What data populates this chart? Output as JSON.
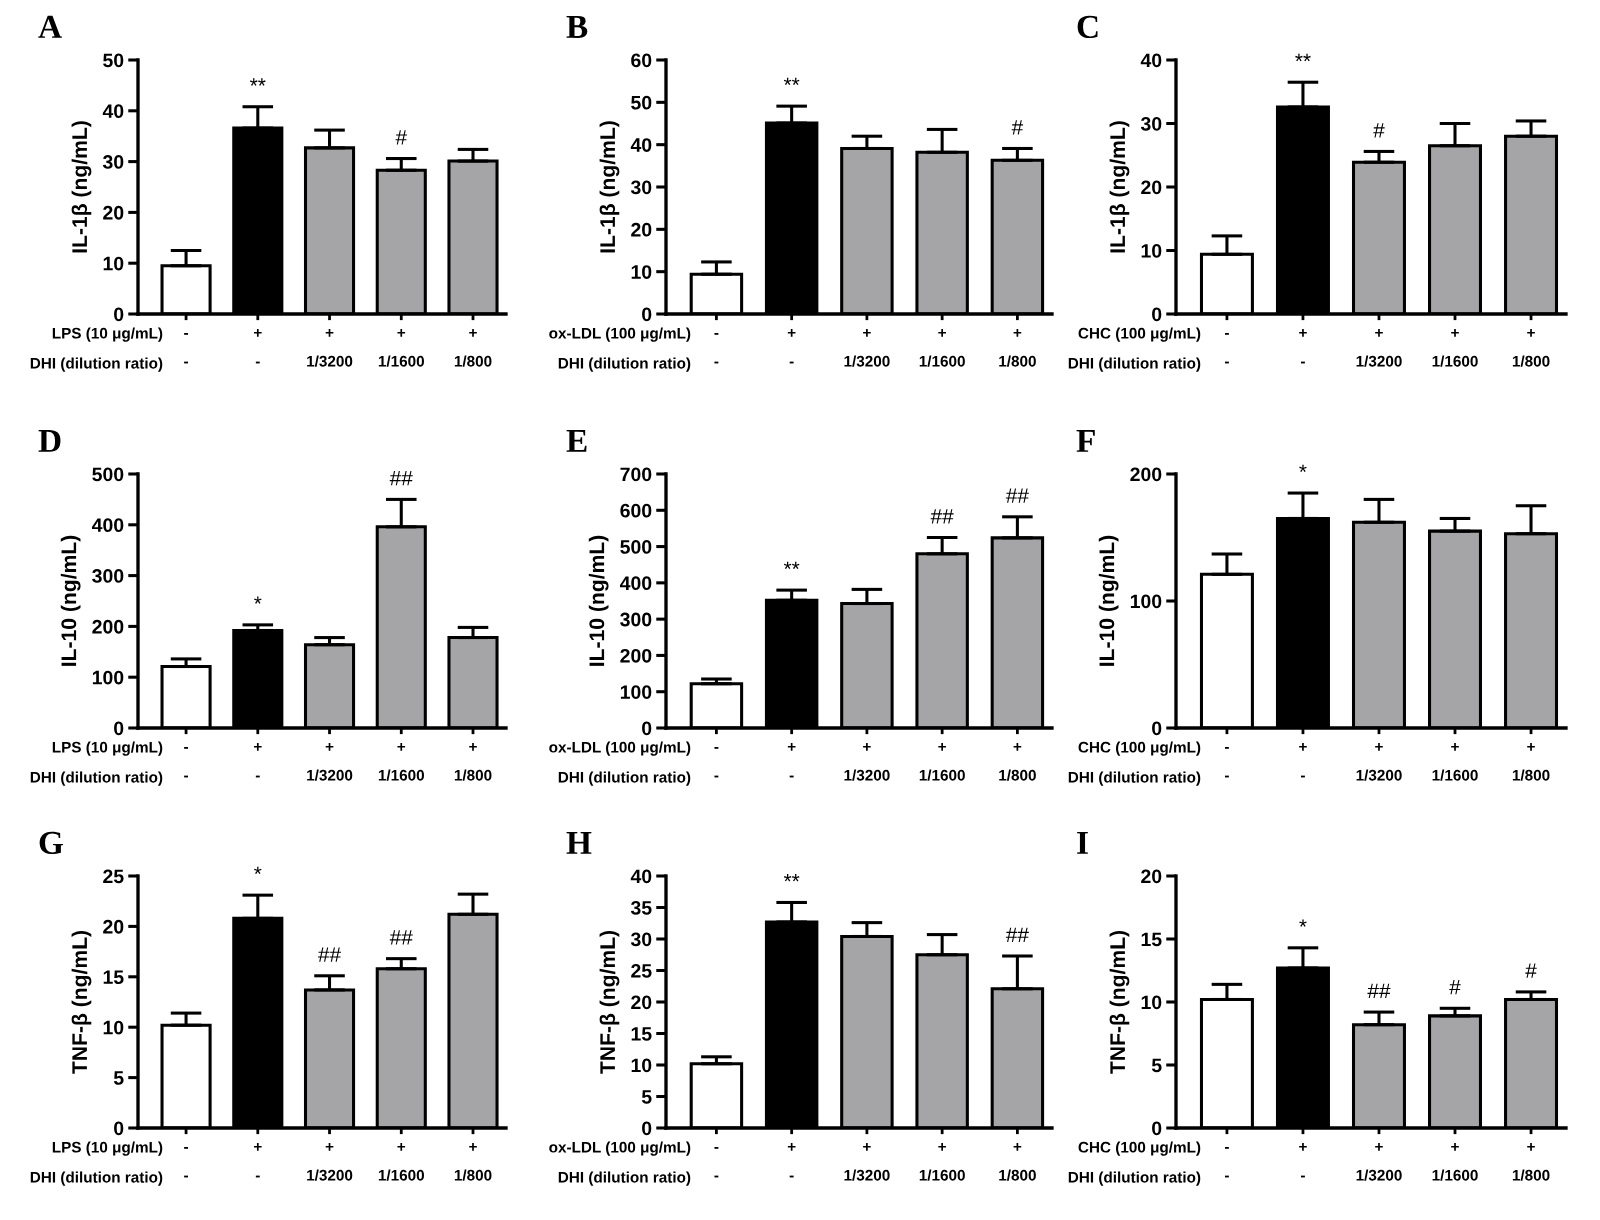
{
  "chart_data": [
    {
      "type": "bar",
      "title": "A",
      "ylabel": "IL-1β (ng/mL)",
      "categories": [
        "-\n-",
        "+\n-",
        "+\n1/3200",
        "+\n1/1600",
        "+\n1/800"
      ],
      "values": [
        9.5,
        36.6,
        32.7,
        28.3,
        30.1
      ],
      "errors": [
        3.0,
        4.2,
        3.5,
        2.3,
        2.3
      ],
      "colors": [
        "#ffffff",
        "#000000",
        "#a5a5a8",
        "#a5a5a8",
        "#a5a5a8"
      ],
      "value_labels": [
        null,
        "**",
        null,
        "#",
        null
      ],
      "ylim": [
        0,
        50
      ],
      "yticks": [
        0,
        10,
        20,
        30,
        40,
        50
      ],
      "annotations": [
        "LPS (10 μg/mL)",
        "DHI (dilution ratio)"
      ]
    },
    {
      "type": "bar",
      "title": "B",
      "ylabel": "IL-1β (ng/mL)",
      "categories": [
        "-\n-",
        "+\n-",
        "+\n1/3200",
        "+\n1/1600",
        "+\n1/800"
      ],
      "values": [
        9.4,
        45.1,
        39.1,
        38.2,
        36.3
      ],
      "errors": [
        2.9,
        4.0,
        2.9,
        5.4,
        2.8
      ],
      "colors": [
        "#ffffff",
        "#000000",
        "#a5a5a8",
        "#a5a5a8",
        "#a5a5a8"
      ],
      "value_labels": [
        null,
        "**",
        null,
        null,
        "#"
      ],
      "ylim": [
        0,
        60
      ],
      "yticks": [
        0,
        10,
        20,
        30,
        40,
        50,
        60
      ],
      "annotations": [
        "ox-LDL (100 μg/mL)",
        "DHI (dilution ratio)"
      ]
    },
    {
      "type": "bar",
      "title": "C",
      "ylabel": "IL-1β (ng/mL)",
      "categories": [
        "-\n-",
        "+\n-",
        "+\n1/3200",
        "+\n1/1600",
        "+\n1/800"
      ],
      "values": [
        9.4,
        32.6,
        23.9,
        26.5,
        28.0
      ],
      "errors": [
        2.9,
        3.9,
        1.7,
        3.5,
        2.4
      ],
      "colors": [
        "#ffffff",
        "#000000",
        "#a5a5a8",
        "#a5a5a8",
        "#a5a5a8"
      ],
      "value_labels": [
        null,
        "**",
        "#",
        null,
        null
      ],
      "ylim": [
        0,
        40
      ],
      "yticks": [
        0,
        10,
        20,
        30,
        40
      ],
      "annotations": [
        "CHC (100 μg/mL)",
        "DHI (dilution ratio)"
      ]
    },
    {
      "type": "bar",
      "title": "D",
      "ylabel": "IL-10 (ng/mL)",
      "categories": [
        "-\n-",
        "+\n-",
        "+\n1/3200",
        "+\n1/1600",
        "+\n1/800"
      ],
      "values": [
        121,
        192,
        164,
        396,
        178
      ],
      "errors": [
        15,
        11,
        14,
        54,
        20
      ],
      "colors": [
        "#ffffff",
        "#000000",
        "#a5a5a8",
        "#a5a5a8",
        "#a5a5a8"
      ],
      "value_labels": [
        null,
        "*",
        null,
        "##",
        null
      ],
      "ylim": [
        0,
        500
      ],
      "yticks": [
        0,
        100,
        200,
        300,
        400,
        500
      ],
      "annotations": [
        "LPS (10 μg/mL)",
        "DHI (dilution ratio)"
      ]
    },
    {
      "type": "bar",
      "title": "E",
      "ylabel": "IL-10 (ng/mL)",
      "categories": [
        "-\n-",
        "+\n-",
        "+\n1/3200",
        "+\n1/1600",
        "+\n1/800"
      ],
      "values": [
        122,
        352,
        343,
        480,
        524
      ],
      "errors": [
        13,
        28,
        39,
        45,
        58
      ],
      "colors": [
        "#ffffff",
        "#000000",
        "#a5a5a8",
        "#a5a5a8",
        "#a5a5a8"
      ],
      "value_labels": [
        null,
        "**",
        null,
        "##",
        "##"
      ],
      "ylim": [
        0,
        700
      ],
      "yticks": [
        0,
        100,
        200,
        300,
        400,
        500,
        600,
        700
      ],
      "annotations": [
        "ox-LDL (100 μg/mL)",
        "DHI (dilution ratio)"
      ]
    },
    {
      "type": "bar",
      "title": "F",
      "ylabel": "IL-10 (ng/mL)",
      "categories": [
        "-\n-",
        "+\n-",
        "+\n1/3200",
        "+\n1/1600",
        "+\n1/800"
      ],
      "values": [
        121,
        165,
        162,
        155,
        153
      ],
      "errors": [
        16,
        20,
        18,
        10,
        22
      ],
      "colors": [
        "#ffffff",
        "#000000",
        "#a5a5a8",
        "#a5a5a8",
        "#a5a5a8"
      ],
      "value_labels": [
        null,
        "*",
        null,
        null,
        null
      ],
      "ylim": [
        0,
        200
      ],
      "yticks": [
        0,
        100,
        200
      ],
      "annotations": [
        "CHC (100 μg/mL)",
        "DHI (dilution ratio)"
      ]
    },
    {
      "type": "bar",
      "title": "G",
      "ylabel": "TNF-β (ng/mL)",
      "categories": [
        "-\n-",
        "+\n-",
        "+\n1/3200",
        "+\n1/1600",
        "+\n1/800"
      ],
      "values": [
        10.2,
        20.8,
        13.7,
        15.8,
        21.2
      ],
      "errors": [
        1.2,
        2.3,
        1.4,
        1.0,
        2.0
      ],
      "colors": [
        "#ffffff",
        "#000000",
        "#a5a5a8",
        "#a5a5a8",
        "#a5a5a8"
      ],
      "value_labels": [
        null,
        "*",
        "##",
        "##",
        null
      ],
      "ylim": [
        0,
        25
      ],
      "yticks": [
        0,
        5,
        10,
        15,
        20,
        25
      ],
      "annotations": [
        "LPS (10 μg/mL)",
        "DHI (dilution ratio)"
      ]
    },
    {
      "type": "bar",
      "title": "H",
      "ylabel": "TNF-β (ng/mL)",
      "categories": [
        "-\n-",
        "+\n-",
        "+\n1/3200",
        "+\n1/1600",
        "+\n1/800"
      ],
      "values": [
        10.2,
        32.7,
        30.4,
        27.5,
        22.1
      ],
      "errors": [
        1.1,
        3.1,
        2.2,
        3.2,
        5.2
      ],
      "colors": [
        "#ffffff",
        "#000000",
        "#a5a5a8",
        "#a5a5a8",
        "#a5a5a8"
      ],
      "value_labels": [
        null,
        "**",
        null,
        null,
        "##"
      ],
      "ylim": [
        0,
        40
      ],
      "yticks": [
        0,
        5,
        10,
        15,
        20,
        25,
        30,
        35,
        40
      ],
      "annotations": [
        "ox-LDL (100 μg/mL)",
        "DHI (dilution ratio)"
      ]
    },
    {
      "type": "bar",
      "title": "I",
      "ylabel": "TNF-β (ng/mL)",
      "categories": [
        "-\n-",
        "+\n-",
        "+\n1/3200",
        "+\n1/1600",
        "+\n1/800"
      ],
      "values": [
        10.2,
        12.7,
        8.2,
        8.9,
        10.2
      ],
      "errors": [
        1.2,
        1.6,
        1.0,
        0.6,
        0.6
      ],
      "colors": [
        "#ffffff",
        "#000000",
        "#a5a5a8",
        "#a5a5a8",
        "#a5a5a8"
      ],
      "value_labels": [
        null,
        "*",
        "##",
        "#",
        "#"
      ],
      "ylim": [
        0,
        20
      ],
      "yticks": [
        0,
        5,
        10,
        15,
        20
      ],
      "annotations": [
        "CHC (100 μg/mL)",
        "DHI (dilution ratio)"
      ]
    }
  ]
}
